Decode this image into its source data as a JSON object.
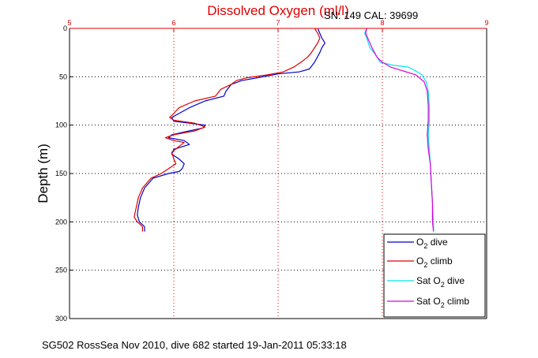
{
  "chart_data": {
    "type": "line",
    "title": "Dissolved Oxygen (ml/l)",
    "subtitle": "SN: 149  CAL: 39699",
    "xlabel": "",
    "ylabel": "Depth (m)",
    "xlim": [
      5,
      9
    ],
    "ylim": [
      0,
      300
    ],
    "y_reversed": true,
    "x_ticks": [
      5,
      6,
      7,
      8,
      9
    ],
    "y_ticks": [
      0,
      50,
      100,
      150,
      200,
      250,
      300
    ],
    "x_tick_labels": [
      "5",
      "6",
      "7",
      "8",
      "9"
    ],
    "y_tick_labels": [
      "0",
      "50",
      "100",
      "150",
      "200",
      "250",
      "300"
    ],
    "grid": true,
    "legend_position": "bottom-right",
    "legend": [
      {
        "label": "O",
        "sub": "2",
        "suffix": " dive",
        "color": "#0000cc"
      },
      {
        "label": "O",
        "sub": "2",
        "suffix": " climb",
        "color": "#dd0000"
      },
      {
        "label": "Sat O",
        "sub": "2",
        "suffix": " dive",
        "color": "#00e5e5"
      },
      {
        "label": "Sat O",
        "sub": "2",
        "suffix": " climb",
        "color": "#dd00dd"
      }
    ],
    "series": [
      {
        "key": "o2_dive",
        "color": "#0000cc",
        "points": [
          [
            7.38,
            0
          ],
          [
            7.4,
            5
          ],
          [
            7.42,
            10
          ],
          [
            7.45,
            15
          ],
          [
            7.42,
            20
          ],
          [
            7.4,
            25
          ],
          [
            7.35,
            35
          ],
          [
            7.3,
            42
          ],
          [
            7.2,
            45
          ],
          [
            7.0,
            47
          ],
          [
            6.8,
            51
          ],
          [
            6.65,
            54
          ],
          [
            6.55,
            58
          ],
          [
            6.5,
            65
          ],
          [
            6.48,
            70
          ],
          [
            6.3,
            75
          ],
          [
            6.15,
            82
          ],
          [
            6.05,
            88
          ],
          [
            5.98,
            92
          ],
          [
            6.0,
            96
          ],
          [
            6.15,
            98
          ],
          [
            6.3,
            100
          ],
          [
            6.28,
            103
          ],
          [
            6.1,
            107
          ],
          [
            5.98,
            110
          ],
          [
            5.95,
            113
          ],
          [
            6.1,
            116
          ],
          [
            6.15,
            120
          ],
          [
            6.0,
            125
          ],
          [
            5.98,
            130
          ],
          [
            6.05,
            135
          ],
          [
            6.1,
            140
          ],
          [
            6.08,
            145
          ],
          [
            6.05,
            148
          ],
          [
            5.95,
            150
          ],
          [
            5.8,
            155
          ],
          [
            5.72,
            165
          ],
          [
            5.68,
            175
          ],
          [
            5.66,
            185
          ],
          [
            5.65,
            193
          ],
          [
            5.67,
            200
          ],
          [
            5.72,
            205
          ],
          [
            5.72,
            210
          ]
        ]
      },
      {
        "key": "o2_climb",
        "color": "#dd0000",
        "points": [
          [
            7.35,
            0
          ],
          [
            7.38,
            5
          ],
          [
            7.4,
            10
          ],
          [
            7.38,
            15
          ],
          [
            7.35,
            20
          ],
          [
            7.32,
            25
          ],
          [
            7.28,
            30
          ],
          [
            7.22,
            35
          ],
          [
            7.15,
            40
          ],
          [
            7.05,
            45
          ],
          [
            6.9,
            48
          ],
          [
            6.7,
            51
          ],
          [
            6.6,
            54
          ],
          [
            6.55,
            58
          ],
          [
            6.45,
            63
          ],
          [
            6.4,
            70
          ],
          [
            6.2,
            75
          ],
          [
            6.05,
            82
          ],
          [
            6.0,
            88
          ],
          [
            5.96,
            92
          ],
          [
            6.0,
            95
          ],
          [
            6.2,
            98
          ],
          [
            6.3,
            102
          ],
          [
            6.2,
            106
          ],
          [
            6.0,
            110
          ],
          [
            5.92,
            113
          ],
          [
            6.0,
            116
          ],
          [
            6.1,
            118
          ],
          [
            6.05,
            122
          ],
          [
            5.98,
            128
          ],
          [
            6.0,
            135
          ],
          [
            6.02,
            140
          ],
          [
            5.95,
            145
          ],
          [
            5.88,
            150
          ],
          [
            5.78,
            155
          ],
          [
            5.7,
            165
          ],
          [
            5.66,
            175
          ],
          [
            5.64,
            185
          ],
          [
            5.62,
            195
          ],
          [
            5.65,
            200
          ],
          [
            5.7,
            205
          ],
          [
            5.7,
            210
          ]
        ]
      },
      {
        "key": "sat_dive",
        "color": "#00e5e5",
        "points": [
          [
            7.85,
            0
          ],
          [
            7.83,
            5
          ],
          [
            7.85,
            10
          ],
          [
            7.88,
            20
          ],
          [
            7.92,
            25
          ],
          [
            7.95,
            30
          ],
          [
            7.98,
            35
          ],
          [
            8.1,
            38
          ],
          [
            8.25,
            40
          ],
          [
            8.32,
            44
          ],
          [
            8.38,
            48
          ],
          [
            8.42,
            55
          ],
          [
            8.44,
            65
          ],
          [
            8.45,
            80
          ],
          [
            8.45,
            95
          ],
          [
            8.44,
            110
          ],
          [
            8.45,
            125
          ],
          [
            8.46,
            140
          ],
          [
            8.47,
            160
          ],
          [
            8.48,
            180
          ],
          [
            8.49,
            200
          ],
          [
            8.49,
            210
          ]
        ]
      },
      {
        "key": "sat_climb",
        "color": "#dd00dd",
        "points": [
          [
            7.85,
            0
          ],
          [
            7.84,
            5
          ],
          [
            7.86,
            10
          ],
          [
            7.9,
            20
          ],
          [
            7.95,
            30
          ],
          [
            8.0,
            35
          ],
          [
            8.08,
            40
          ],
          [
            8.2,
            44
          ],
          [
            8.32,
            48
          ],
          [
            8.4,
            55
          ],
          [
            8.43,
            65
          ],
          [
            8.44,
            80
          ],
          [
            8.44,
            95
          ],
          [
            8.43,
            110
          ],
          [
            8.44,
            125
          ],
          [
            8.46,
            140
          ],
          [
            8.47,
            160
          ],
          [
            8.48,
            180
          ],
          [
            8.48,
            200
          ],
          [
            8.49,
            210
          ]
        ]
      }
    ],
    "footer": "SG502 RossSea Nov 2010, dive 682 started 19-Jan-2011 05:33:18"
  }
}
